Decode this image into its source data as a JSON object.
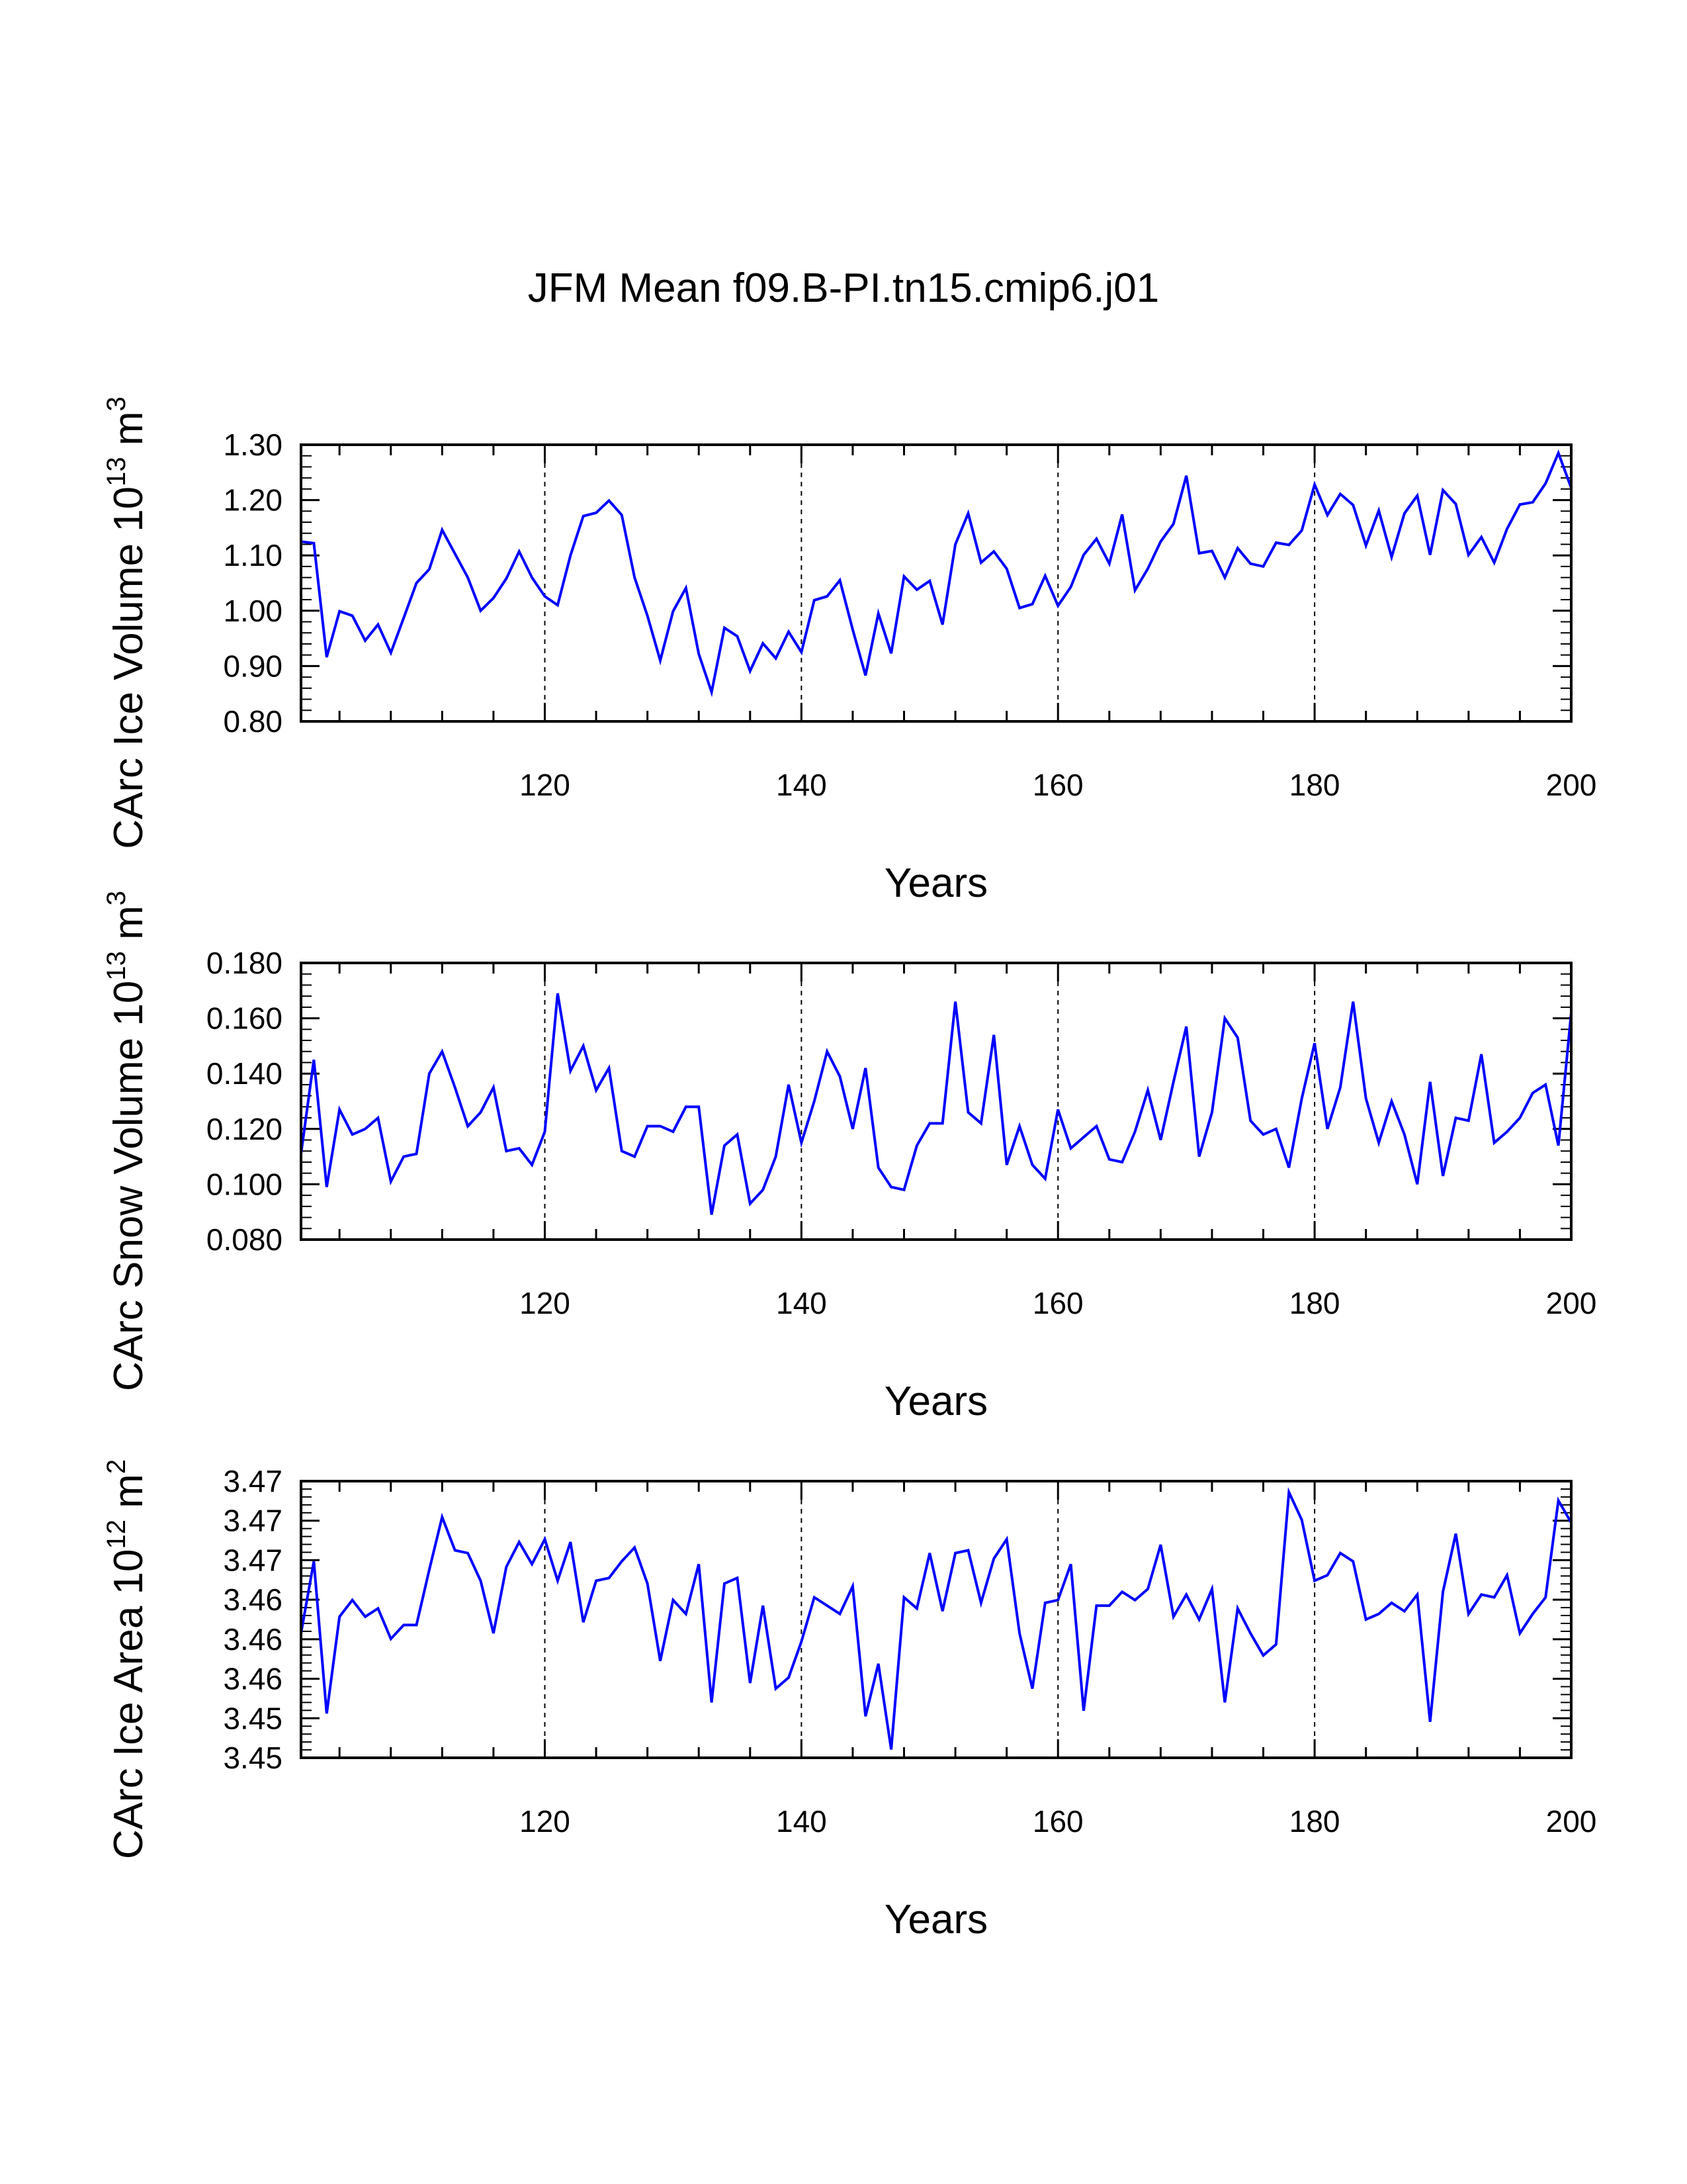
{
  "title": "JFM Mean f09.B-PI.tn15.cmip6.j01",
  "colors": {
    "series": "#0000ff",
    "axis": "#000000",
    "grid": "#000000"
  },
  "chart_data": [
    {
      "type": "line",
      "title": "JFM Mean f09.B-PI.tn15.cmip6.j01",
      "ylabel_main": "CArc Ice Volume 10",
      "ylabel_exp": "13",
      "ylabel_unit": " m",
      "ylabel_unit_exp": "3",
      "xlabel": "Years",
      "xlim": [
        101,
        200
      ],
      "ylim": [
        0.8,
        1.3
      ],
      "grid": "dashed-vertical",
      "xticks": [
        120,
        140,
        160,
        180,
        200
      ],
      "xtick_labels": [
        "120",
        "140",
        "160",
        "180",
        "200"
      ],
      "yticks": [
        0.8,
        0.9,
        1.0,
        1.1,
        1.2,
        1.3
      ],
      "ytick_labels": [
        "0.80",
        "0.90",
        "1.00",
        "1.10",
        "1.20",
        "1.30"
      ],
      "x_start": 101,
      "values": [
        1.125,
        1.122,
        0.916,
        0.999,
        0.991,
        0.946,
        0.975,
        0.924,
        0.987,
        1.05,
        1.075,
        1.146,
        1.103,
        1.06,
        1.0,
        1.023,
        1.058,
        1.107,
        1.06,
        1.026,
        1.01,
        1.1,
        1.171,
        1.177,
        1.199,
        1.173,
        1.06,
        0.991,
        0.91,
        0.999,
        1.041,
        0.922,
        0.853,
        0.969,
        0.954,
        0.891,
        0.941,
        0.914,
        0.962,
        0.925,
        1.019,
        1.026,
        1.055,
        0.966,
        0.883,
        0.995,
        0.923,
        1.062,
        1.038,
        1.054,
        0.975,
        1.12,
        1.176,
        1.087,
        1.107,
        1.076,
        1.005,
        1.012,
        1.063,
        1.009,
        1.043,
        1.101,
        1.13,
        1.085,
        1.174,
        1.037,
        1.076,
        1.125,
        1.157,
        1.244,
        1.104,
        1.108,
        1.06,
        1.113,
        1.085,
        1.08,
        1.123,
        1.119,
        1.145,
        1.228,
        1.173,
        1.211,
        1.191,
        1.118,
        1.181,
        1.097,
        1.176,
        1.208,
        1.101,
        1.218,
        1.193,
        1.101,
        1.133,
        1.087,
        1.148,
        1.192,
        1.196,
        1.23,
        1.285,
        1.222
      ],
      "ylabel_full": "CArc Ice Volume 10^13 m^3"
    },
    {
      "type": "line",
      "ylabel_main": "CArc Snow Volume 10",
      "ylabel_exp": "13",
      "ylabel_unit": " m",
      "ylabel_unit_exp": "3",
      "xlabel": "Years",
      "xlim": [
        101,
        200
      ],
      "ylim": [
        0.08,
        0.18
      ],
      "grid": "dashed-vertical",
      "xticks": [
        120,
        140,
        160,
        180,
        200
      ],
      "xtick_labels": [
        "120",
        "140",
        "160",
        "180",
        "200"
      ],
      "yticks": [
        0.08,
        0.1,
        0.12,
        0.14,
        0.16,
        0.18
      ],
      "ytick_labels": [
        "0.080",
        "0.100",
        "0.120",
        "0.140",
        "0.160",
        "0.180"
      ],
      "x_start": 101,
      "values": [
        0.111,
        0.145,
        0.099,
        0.127,
        0.118,
        0.12,
        0.124,
        0.101,
        0.11,
        0.111,
        0.14,
        0.148,
        0.135,
        0.121,
        0.126,
        0.135,
        0.112,
        0.113,
        0.107,
        0.119,
        0.169,
        0.141,
        0.15,
        0.134,
        0.142,
        0.112,
        0.11,
        0.121,
        0.121,
        0.119,
        0.128,
        0.128,
        0.089,
        0.114,
        0.118,
        0.093,
        0.098,
        0.11,
        0.136,
        0.115,
        0.13,
        0.148,
        0.139,
        0.12,
        0.142,
        0.106,
        0.099,
        0.098,
        0.114,
        0.122,
        0.122,
        0.166,
        0.126,
        0.122,
        0.154,
        0.107,
        0.121,
        0.107,
        0.102,
        0.127,
        0.113,
        0.117,
        0.121,
        0.109,
        0.108,
        0.119,
        0.134,
        0.116,
        0.137,
        0.157,
        0.11,
        0.126,
        0.16,
        0.153,
        0.123,
        0.118,
        0.12,
        0.106,
        0.131,
        0.151,
        0.12,
        0.135,
        0.166,
        0.131,
        0.115,
        0.13,
        0.118,
        0.1,
        0.137,
        0.103,
        0.124,
        0.123,
        0.147,
        0.115,
        0.119,
        0.124,
        0.133,
        0.136,
        0.114,
        0.162
      ],
      "ylabel_full": "CArc Snow Volume 10^13 m^3"
    },
    {
      "type": "line",
      "ylabel_main": "CArc Ice Area 10",
      "ylabel_exp": "12",
      "ylabel_unit": " m",
      "ylabel_unit_exp": "2",
      "xlabel": "Years",
      "xlim": [
        101,
        200
      ],
      "ylim": [
        3.45,
        3.47
      ],
      "grid": "dashed-vertical",
      "xticks": [
        120,
        140,
        160,
        180,
        200
      ],
      "xtick_labels": [
        "120",
        "140",
        "160",
        "180",
        "200"
      ],
      "yticks": [
        0,
        1,
        2,
        3,
        4,
        5,
        6,
        7
      ],
      "ytick_labels": [
        "3.45",
        "3.45",
        "3.46",
        "3.46",
        "3.46",
        "3.47",
        "3.47",
        "3.47"
      ],
      "x_start": 101,
      "values": [
        0.45,
        0.71,
        0.16,
        0.51,
        0.57,
        0.51,
        0.54,
        0.43,
        0.48,
        0.48,
        0.68,
        0.87,
        0.75,
        0.74,
        0.64,
        0.45,
        0.69,
        0.78,
        0.7,
        0.79,
        0.64,
        0.78,
        0.49,
        0.64,
        0.65,
        0.71,
        0.76,
        0.63,
        0.35,
        0.57,
        0.52,
        0.7,
        0.2,
        0.63,
        0.65,
        0.27,
        0.55,
        0.25,
        0.29,
        0.42,
        0.58,
        0.55,
        0.52,
        0.62,
        0.15,
        0.34,
        0.03,
        0.58,
        0.54,
        0.74,
        0.53,
        0.74,
        0.75,
        0.56,
        0.72,
        0.79,
        0.45,
        0.25,
        0.56,
        0.57,
        0.7,
        0.17,
        0.55,
        0.55,
        0.6,
        0.57,
        0.61,
        0.77,
        0.51,
        0.59,
        0.5,
        0.61,
        0.2,
        0.54,
        0.45,
        0.37,
        0.41,
        0.96,
        0.86,
        0.64,
        0.66,
        0.74,
        0.71,
        0.5,
        0.52,
        0.56,
        0.53,
        0.59,
        0.13,
        0.6,
        0.81,
        0.52,
        0.59,
        0.58,
        0.66,
        0.45,
        0.52,
        0.58,
        0.93,
        0.85
      ],
      "values_note": "normalized fraction within plotted range",
      "ylabel_full": "CArc Ice Area 10^12 m^2"
    }
  ]
}
